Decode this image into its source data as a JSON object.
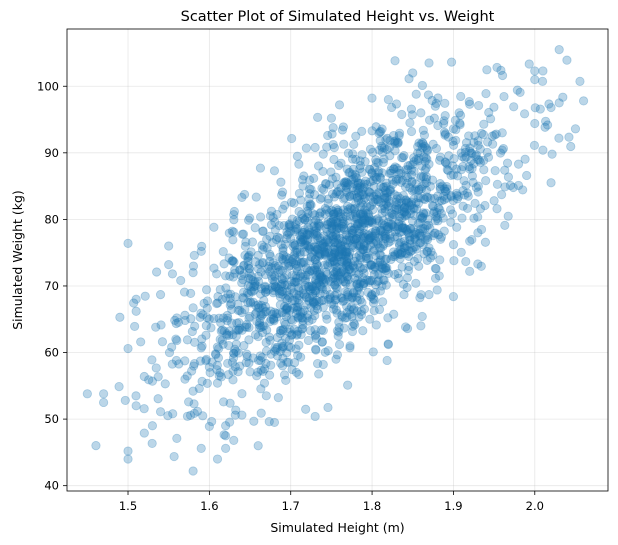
{
  "chart_data": {
    "type": "scatter",
    "title": "Scatter Plot of Simulated Height vs. Weight",
    "xlabel": "Simulated Height (m)",
    "ylabel": "Simulated Weight (kg)",
    "xlim": [
      1.425,
      2.09
    ],
    "ylim": [
      39.2,
      108.6
    ],
    "xticks": [
      1.5,
      1.6,
      1.7,
      1.8,
      1.9,
      2.0
    ],
    "yticks": [
      40,
      50,
      60,
      70,
      80,
      90,
      100
    ],
    "xtick_labels": [
      "1.5",
      "1.6",
      "1.7",
      "1.8",
      "1.9",
      "2.0"
    ],
    "ytick_labels": [
      "40",
      "50",
      "60",
      "70",
      "80",
      "90",
      "100"
    ],
    "grid": true,
    "marker_color": "#1f77b4",
    "marker_alpha": 0.3,
    "n_points": 2000,
    "series": [
      {
        "x": [
          1.45,
          1.47,
          1.47,
          1.49,
          1.5,
          1.5,
          1.5,
          1.51,
          1.51,
          1.5,
          1.52,
          1.53,
          1.51,
          1.53,
          1.54,
          1.55,
          1.57,
          1.56,
          1.58,
          1.59,
          1.6,
          1.61,
          1.62,
          1.62,
          1.64,
          1.62,
          1.63,
          1.66,
          1.67,
          1.68,
          1.69,
          1.71,
          1.73,
          1.74,
          1.77,
          1.76,
          1.82,
          1.86,
          1.87,
          1.88,
          1.9,
          1.92,
          1.93,
          1.95,
          1.97,
          1.98,
          1.99,
          2.0,
          2.01,
          2.02,
          2.03,
          2.03,
          2.05,
          2.06,
          2.02,
          2.01,
          2.0,
          1.96,
          1.94,
          1.92,
          1.87,
          1.86,
          1.85,
          1.82,
          1.8,
          1.78,
          1.76,
          1.74,
          1.75,
          1.56,
          1.54,
          1.56,
          1.58,
          1.6,
          1.63,
          1.66,
          1.64,
          1.69,
          1.71,
          1.73,
          1.68,
          1.78,
          1.87,
          1.9,
          1.93,
          1.98,
          2.0,
          1.96,
          1.84,
          1.77,
          1.72,
          1.65,
          1.61,
          1.58,
          1.52,
          1.55,
          1.59,
          1.63,
          1.57,
          1.66
        ],
        "y": [
          53.8,
          53.8,
          52.5,
          65.3,
          45.2,
          44.0,
          76.4,
          52.0,
          68.0,
          60.6,
          47.9,
          55.7,
          66.2,
          49.0,
          51.1,
          76.0,
          56.0,
          47.1,
          42.2,
          45.6,
          48.9,
          44.0,
          49.0,
          47.5,
          50.6,
          45.6,
          46.8,
          46.0,
          53.5,
          49.5,
          58.0,
          56.7,
          50.4,
          58.2,
          55.1,
          61.2,
          61.2,
          64.0,
          68.7,
          69.4,
          68.4,
          72.2,
          73.3,
          82.8,
          85.1,
          88.3,
          86.6,
          102.3,
          102.3,
          96.8,
          105.5,
          97.5,
          93.6,
          97.8,
          85.5,
          90.4,
          101.0,
          90.4,
          98.9,
          97.3,
          103.5,
          96.0,
          102.0,
          98.0,
          93.3,
          92.5,
          97.2,
          89.8,
          95.2,
          61.8,
          68.7,
          65.2,
          72.0,
          57.8,
          78.1,
          74.6,
          83.3,
          84.1,
          88.3,
          90.8,
          87.3,
          82.4,
          88.3,
          93.6,
          89.0,
          85.1,
          94.4,
          93.0,
          76.1,
          69.0,
          67.2,
          57.1,
          55.4,
          54.2,
          56.4,
          73.2,
          60.7,
          80.7,
          65.6,
          62.4
        ]
      }
    ]
  }
}
